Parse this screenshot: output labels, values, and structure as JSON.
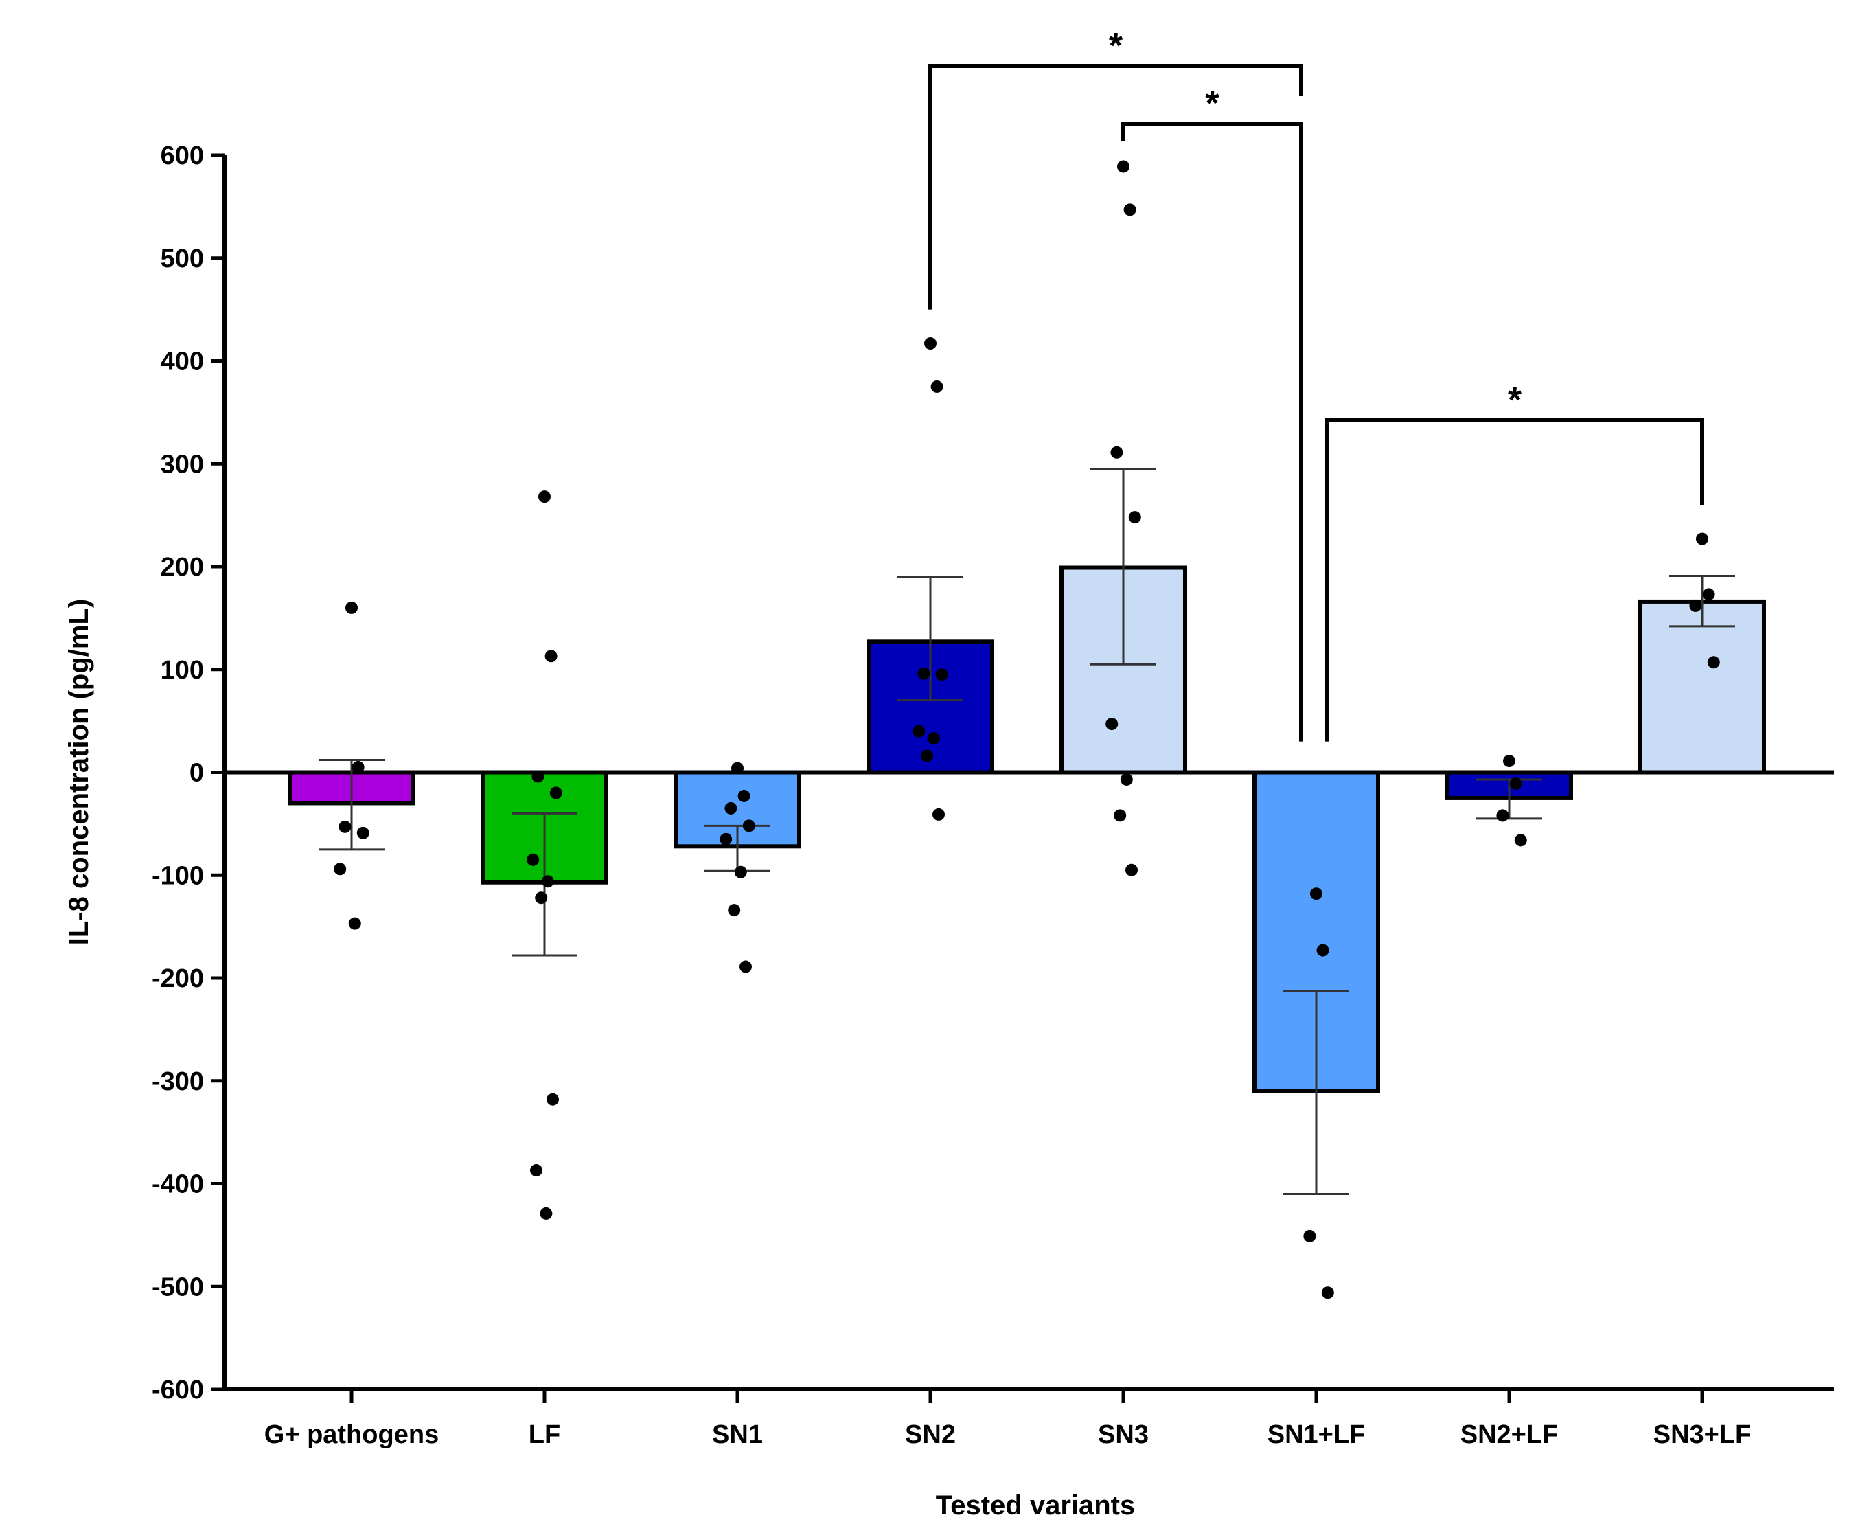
{
  "chart_data": {
    "type": "bar",
    "title": "",
    "xlabel": "Tested variants",
    "ylabel": "IL-8 concentration (pg/mL)",
    "ylim": [
      -600,
      600
    ],
    "yticks": [
      600,
      500,
      400,
      300,
      200,
      100,
      0,
      -100,
      -200,
      -300,
      -400,
      -500,
      -600
    ],
    "grid": false,
    "legend": "none",
    "categories": [
      "G+ pathogens",
      "LF",
      "SN1",
      "SN2",
      "SN3",
      "SN1+LF",
      "SN2+LF",
      "SN3+LF"
    ],
    "values": [
      -30,
      -107,
      -72,
      127,
      199,
      -310,
      -25,
      166
    ],
    "error_low": [
      -75,
      -178,
      -96,
      70,
      105,
      -410,
      -45,
      142
    ],
    "error_high": [
      12,
      -40,
      -52,
      190,
      295,
      -213,
      -7,
      191
    ],
    "points": [
      [
        160,
        5,
        -53,
        -59,
        -94,
        -147
      ],
      [
        268,
        113,
        -4,
        -20,
        -85,
        -106,
        -122,
        -318,
        -387,
        -429
      ],
      [
        4,
        -23,
        -35,
        -52,
        -65,
        -97,
        -134,
        -189
      ],
      [
        417,
        375,
        96,
        95,
        40,
        33,
        16,
        -41
      ],
      [
        589,
        547,
        311,
        248,
        47,
        -7,
        -42,
        -95
      ],
      [
        -118,
        -173,
        -451,
        -506
      ],
      [
        11,
        -11,
        -42,
        -66
      ],
      [
        227,
        173,
        162,
        107
      ]
    ],
    "colors": [
      "#aa00dd",
      "#00bb00",
      "#55a0ff",
      "#0000b8",
      "#c8dcf5",
      "#55a0ff",
      "#0000b8",
      "#c8dcf5"
    ],
    "significance": [
      {
        "from": "SN2",
        "to": "SN1+LF",
        "label": "*"
      },
      {
        "from": "SN3",
        "to": "SN1+LF",
        "label": "*"
      },
      {
        "from": "SN1+LF",
        "to": "SN3+LF",
        "label": "*"
      }
    ]
  }
}
